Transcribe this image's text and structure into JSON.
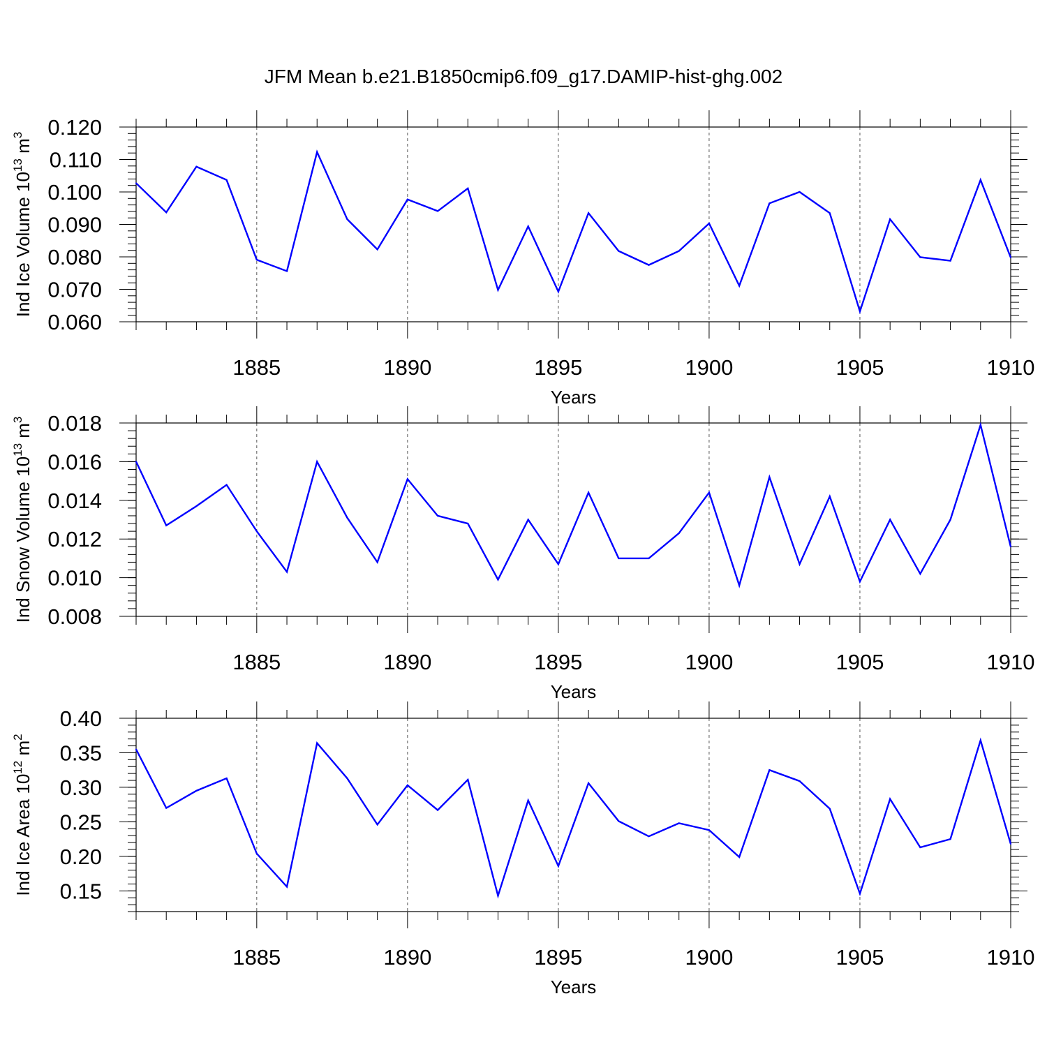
{
  "title": "JFM Mean b.e21.B1850cmip6.f09_g17.DAMIP-hist-ghg.002",
  "line_color": "#0000ff",
  "chart_data": [
    {
      "type": "line",
      "ylabel": "Ind Ice Volume 10",
      "ylabel_exp": "13",
      "ylabel_unit": " m",
      "ylabel_unit_exp": "3",
      "xlabel": "Years",
      "xlim": [
        1881,
        1910
      ],
      "ylim": [
        0.06,
        0.12
      ],
      "yticks": [
        0.06,
        0.07,
        0.08,
        0.09,
        0.1,
        0.11,
        0.12
      ],
      "ytick_labels": [
        "0.060",
        "0.070",
        "0.080",
        "0.090",
        "0.100",
        "0.110",
        "0.120"
      ],
      "yminor_step": 0.002,
      "xticks": [
        1885,
        1890,
        1895,
        1900,
        1905,
        1910
      ],
      "xtick_labels": [
        "1885",
        "1890",
        "1895",
        "1900",
        "1905",
        "1910"
      ],
      "x": [
        1881,
        1882,
        1883,
        1884,
        1885,
        1886,
        1887,
        1888,
        1889,
        1890,
        1891,
        1892,
        1893,
        1894,
        1895,
        1896,
        1897,
        1898,
        1899,
        1900,
        1901,
        1902,
        1903,
        1904,
        1905,
        1906,
        1907,
        1908,
        1909,
        1910
      ],
      "values": [
        0.1027,
        0.0937,
        0.1078,
        0.1037,
        0.0791,
        0.0756,
        0.1123,
        0.0916,
        0.0823,
        0.0977,
        0.0941,
        0.1011,
        0.0698,
        0.0894,
        0.0693,
        0.0935,
        0.0818,
        0.0775,
        0.0818,
        0.0903,
        0.0711,
        0.0965,
        0.1,
        0.0935,
        0.0632,
        0.0916,
        0.0799,
        0.0788,
        0.1037,
        0.0798
      ]
    },
    {
      "type": "line",
      "ylabel": "Ind Snow Volume 10",
      "ylabel_exp": "13",
      "ylabel_unit": " m",
      "ylabel_unit_exp": "3",
      "xlabel": "Years",
      "xlim": [
        1881,
        1910
      ],
      "ylim": [
        0.008,
        0.018
      ],
      "yticks": [
        0.008,
        0.01,
        0.012,
        0.014,
        0.016,
        0.018
      ],
      "ytick_labels": [
        "0.008",
        "0.010",
        "0.012",
        "0.014",
        "0.016",
        "0.018"
      ],
      "yminor_step": 0.0004,
      "xticks": [
        1885,
        1890,
        1895,
        1900,
        1905,
        1910
      ],
      "xtick_labels": [
        "1885",
        "1890",
        "1895",
        "1900",
        "1905",
        "1910"
      ],
      "x": [
        1881,
        1882,
        1883,
        1884,
        1885,
        1886,
        1887,
        1888,
        1889,
        1890,
        1891,
        1892,
        1893,
        1894,
        1895,
        1896,
        1897,
        1898,
        1899,
        1900,
        1901,
        1902,
        1903,
        1904,
        1905,
        1906,
        1907,
        1908,
        1909,
        1910
      ],
      "values": [
        0.016,
        0.0127,
        0.0137,
        0.0148,
        0.0124,
        0.0103,
        0.016,
        0.0131,
        0.0108,
        0.0151,
        0.0132,
        0.0128,
        0.0099,
        0.013,
        0.0107,
        0.0144,
        0.011,
        0.011,
        0.0123,
        0.0144,
        0.0096,
        0.0152,
        0.0107,
        0.0142,
        0.0098,
        0.013,
        0.0102,
        0.013,
        0.0179,
        0.0116
      ]
    },
    {
      "type": "line",
      "ylabel": "Ind Ice Area 10",
      "ylabel_exp": "12",
      "ylabel_unit": " m",
      "ylabel_unit_exp": "2",
      "xlabel": "Years",
      "xlim": [
        1881,
        1910
      ],
      "ylim": [
        0.12,
        0.4
      ],
      "yticks": [
        0.15,
        0.2,
        0.25,
        0.3,
        0.35,
        0.4
      ],
      "ytick_labels": [
        "0.15",
        "0.20",
        "0.25",
        "0.30",
        "0.35",
        "0.40"
      ],
      "yminor_step": 0.01,
      "xticks": [
        1885,
        1890,
        1895,
        1900,
        1905,
        1910
      ],
      "xtick_labels": [
        "1885",
        "1890",
        "1895",
        "1900",
        "1905",
        "1910"
      ],
      "x": [
        1881,
        1882,
        1883,
        1884,
        1885,
        1886,
        1887,
        1888,
        1889,
        1890,
        1891,
        1892,
        1893,
        1894,
        1895,
        1896,
        1897,
        1898,
        1899,
        1900,
        1901,
        1902,
        1903,
        1904,
        1905,
        1906,
        1907,
        1908,
        1909,
        1910
      ],
      "values": [
        0.355,
        0.27,
        0.295,
        0.313,
        0.204,
        0.156,
        0.364,
        0.313,
        0.246,
        0.303,
        0.267,
        0.311,
        0.143,
        0.281,
        0.186,
        0.306,
        0.251,
        0.229,
        0.248,
        0.238,
        0.199,
        0.325,
        0.309,
        0.269,
        0.146,
        0.283,
        0.213,
        0.225,
        0.368,
        0.218
      ]
    }
  ]
}
